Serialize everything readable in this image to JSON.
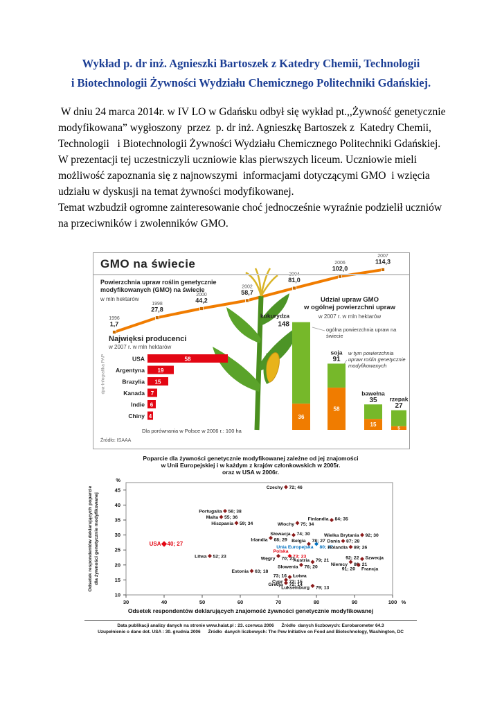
{
  "colors": {
    "title_blue": "#1c3e94",
    "infographic_orange": "#f07c00",
    "infographic_green": "#76b82a",
    "producer_red": "#e30613",
    "scatter_point": "#8b1a1a",
    "eu_blue": "#0070c0",
    "highlight_red": "#e30613"
  },
  "document": {
    "title": {
      "line1": "Wykład p. dr inż. Agnieszki Bartoszek z  Katedry Chemii, Technologii",
      "line2": "i Biotechnologii Żywności Wydziału Chemicznego Politechniki Gdańskiej."
    },
    "paragraphs": [
      " W dniu 24 marca 2014r. w IV LO w Gdańsku odbył się wykład pt.,,Żywność genetycznie modyfikowana” wygłoszony  przez  p. dr inż. Agnieszkę Bartoszek z  Katedry Chemii, Technologii   i Biotechnologii Żywności Wydziału Chemicznego Politechniki Gdańskiej.",
      "W prezentacji tej uczestniczyli uczniowie klas pierwszych liceum. Uczniowie mieli możliwość zapoznania się z najnowszymi  informacjami dotyczącymi GMO  i wzięcia udziału w dyskusji na temat żywności modyfikowanej.",
      "Temat wzbudził ogromne zainteresowanie choć jednocześnie wyraźnie podzielił uczniów na przeciwników i zwolenników GMO."
    ]
  },
  "infographic": {
    "title": "GMO na świecie",
    "subtitle": "Powierzchnia upraw roślin genetycznie modyfikowanych (GMO) na świecie",
    "unit": "w mln hektarów",
    "right_title_1": "Udział upraw GMO",
    "right_title_2": "w ogólnej powierzchni upraw",
    "right_subtitle": "w 2007 r. w mln hektarów",
    "legend_total": "ogólna powierzchnia upraw na świecie",
    "legend_gmo": "w tym powierzchnia upraw roślin genetycznie modyfikowanych",
    "producers_title": "Najwięksi producenci",
    "producers_subtitle": "w 2007 r. w mln hektarów",
    "footnote": "Dla porównania w Polsce w 2006 r.: 100 ha",
    "source": "Źródło: ISAAA",
    "credit": "dpa-Infografika PAP"
  },
  "scatter": {
    "title_line1": "Poparcie dla żywności genetycznie modyfikowanej zależne od jej znajomości",
    "title_line2": "w Unii Europejskiej i w każdym z krajów członkowskich w 2005r.",
    "title_line3": "oraz w USA w 2006r.",
    "ylabel_line1": "Odsetek respondentów deklarujących poparcie",
    "ylabel_line2": "dla żywności genetycznie modyfikowanej",
    "xlabel": "Odsetek respondentów deklarujących znajomość  żywności genetycznie modyfikowanej",
    "footnote_line1": "Data publikacji analizy danych na stronie www.halat.pl : 23. czerwca 2006      Źródło  danych liczbowych: Eurobarometer 64.3",
    "footnote_line2": "Uzupełnienie o dane dot. USA : 30. grudnia 2006      Źródło  danych liczbowych: The Pew Initiative on Food and Biotechnology, Washington, DC"
  },
  "chart_data": [
    {
      "type": "line",
      "title": "Powierzchnia upraw roślin genetycznie modyfikowanych (GMO) na świecie",
      "ylabel": "w mln hektarów",
      "x": [
        1996,
        1998,
        2000,
        2002,
        2004,
        2006,
        2007
      ],
      "values": [
        1.7,
        27.8,
        44.2,
        58.7,
        81.0,
        102.0,
        114.3
      ],
      "labels": [
        "1,7",
        "27,8",
        "44,2",
        "58,7",
        "81,0",
        "102,0",
        "114,3"
      ],
      "color": "#f07c00"
    },
    {
      "type": "bar",
      "title": "Udział upraw GMO w ogólnej powierzchni upraw w 2007 r. w mln hektarów",
      "categories": [
        "kukurydza",
        "soja",
        "bawełna",
        "rzepak"
      ],
      "series": [
        {
          "name": "ogólna powierzchnia upraw na świecie",
          "values": [
            148,
            91,
            35,
            27
          ],
          "color": "#76b82a"
        },
        {
          "name": "w tym powierzchnia upraw roślin genetycznie modyfikowanych",
          "values": [
            36,
            58,
            15,
            5
          ],
          "color": "#f07c00"
        }
      ]
    },
    {
      "type": "bar",
      "title": "Najwięksi producenci w 2007 r. w mln hektarów",
      "categories": [
        "USA",
        "Argentyna",
        "Brazylia",
        "Kanada",
        "Indie",
        "Chiny"
      ],
      "values": [
        58,
        19,
        15,
        7,
        6,
        4
      ],
      "color": "#e30613"
    },
    {
      "type": "scatter",
      "title": "Poparcie dla żywności genetycznie modyfikowanej zależne od jej znajomości w Unii Europejskiej i w każdym z krajów członkowskich w 2005r. oraz w USA w 2006r.",
      "xlabel": "Odsetek respondentów deklarujących znajomość  żywności genetycznie modyfikowanej",
      "ylabel": "Odsetek respondentów deklarujących poparcie dla żywności genetycznie modyfikowanej",
      "xlim": [
        30,
        100
      ],
      "ylim": [
        10,
        47.5
      ],
      "xticks": [
        30,
        40,
        50,
        60,
        70,
        80,
        90,
        100
      ],
      "yticks": [
        10,
        15,
        20,
        25,
        30,
        35,
        40,
        45
      ],
      "points": [
        {
          "name": "Czechy",
          "x": 72,
          "y": 46
        },
        {
          "name": "Portugalia",
          "x": 56,
          "y": 38
        },
        {
          "name": "Malta",
          "x": 55,
          "y": 36
        },
        {
          "name": "Hiszpania",
          "x": 59,
          "y": 34
        },
        {
          "name": "Włochy",
          "x": 75,
          "y": 34,
          "ldy": 1
        },
        {
          "name": "Finlandia",
          "x": 84,
          "y": 35,
          "ldy": -2
        },
        {
          "name": "Słowacja",
          "x": 74,
          "y": 30,
          "ldy": -2
        },
        {
          "name": "Irlandia",
          "x": 68,
          "y": 29,
          "ldy": 2
        },
        {
          "name": "Wielka Brytania",
          "x": 92,
          "y": 30
        },
        {
          "name": "Dania",
          "x": 87,
          "y": 28
        },
        {
          "name": "Belgia",
          "x": 78,
          "y": 27,
          "ldy": -5
        },
        {
          "name": "Unia Europejska",
          "x": 80,
          "y": 27,
          "color": "#0070c0",
          "ldy": 4
        },
        {
          "name": "Holandia",
          "x": 89,
          "y": 26
        },
        {
          "name": "Szwecja",
          "x": 92,
          "y": 22,
          "side": "right",
          "ldy": -2
        },
        {
          "name": "Niemcy",
          "x": 89,
          "y": 21,
          "ldy": 3
        },
        {
          "name": "Francja",
          "x": 91,
          "y": 20,
          "side": "right",
          "ldy": 5
        },
        {
          "name": "Austria",
          "x": 79,
          "y": 21,
          "ldy": -3
        },
        {
          "name": "Polska",
          "x": 73,
          "y": 23,
          "color": "#e30613",
          "name_pos": "above"
        },
        {
          "name": "Węgry",
          "x": 70,
          "y": 23,
          "ldy": 3
        },
        {
          "name": "Słowenia",
          "x": 76,
          "y": 20,
          "ldy": 2
        },
        {
          "name": "Litwa",
          "x": 52,
          "y": 23
        },
        {
          "name": "Estonia",
          "x": 63,
          "y": 18
        },
        {
          "name": "Cypr",
          "x": 72,
          "y": 15,
          "ldy": 2
        },
        {
          "name": "Łotwa",
          "x": 73,
          "y": 16,
          "side": "right",
          "ldy": -2
        },
        {
          "name": "Grecja",
          "x": 72,
          "y": 14,
          "ldy": 2
        },
        {
          "name": "Luksemburg",
          "x": 79,
          "y": 13,
          "ldy": 2
        },
        {
          "name": "USA",
          "x": 40,
          "y": 27,
          "color": "#e30613",
          "big": true
        }
      ]
    }
  ]
}
